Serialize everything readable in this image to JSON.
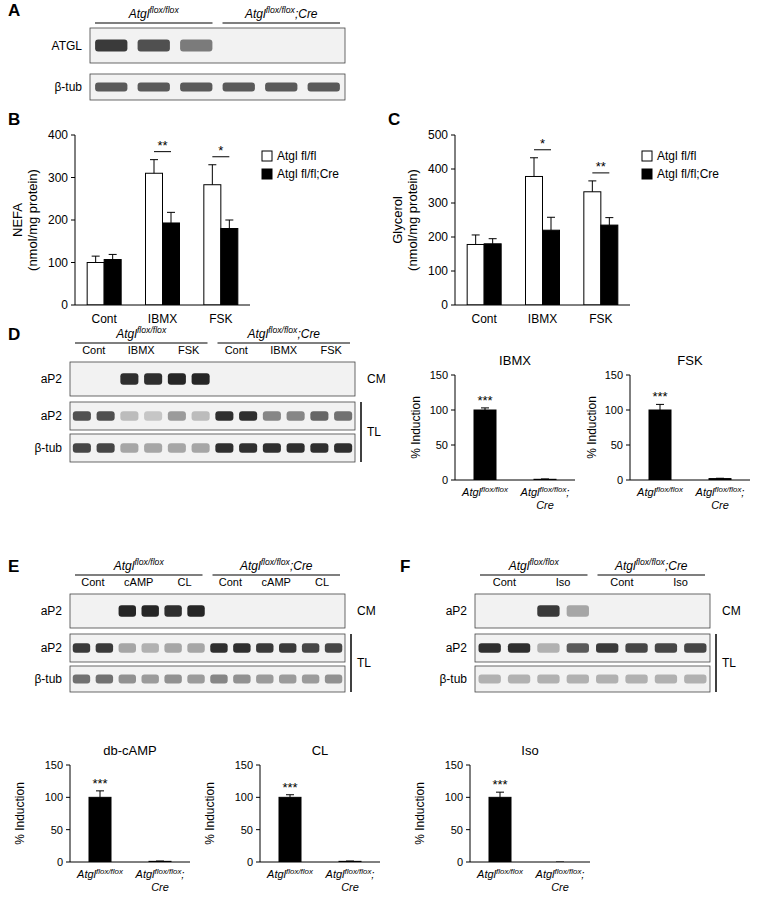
{
  "panels": [
    "A",
    "B",
    "C",
    "D",
    "E",
    "F"
  ],
  "blots": [
    {
      "groups": [
        "Atglflox/flox",
        "Atglflox/flox;Cre"
      ],
      "rows": [
        "ATGL",
        "β-tub"
      ]
    },
    {
      "groups": [
        "Atglflox/flox",
        "Atglflox/flox;Cre"
      ],
      "lanes": [
        "Cont",
        "IBMX",
        "FSK",
        "Cont",
        "IBMX",
        "FSK"
      ],
      "rows": [
        "aP2",
        "aP2",
        "β-tub"
      ],
      "fractions": [
        "CM",
        "TL"
      ]
    },
    {
      "groups": [
        "Atglflox/flox",
        "Atglflox/flox;Cre"
      ],
      "lanes": [
        "Cont",
        "cAMP",
        "CL",
        "Cont",
        "cAMP",
        "CL"
      ],
      "rows": [
        "aP2",
        "aP2",
        "β-tub"
      ],
      "fractions": [
        "CM",
        "TL"
      ]
    },
    {
      "groups": [
        "Atglflox/flox",
        "Atglflox/flox;Cre"
      ],
      "lanes": [
        "Cont",
        "Iso",
        "Cont",
        "Iso"
      ],
      "rows": [
        "aP2",
        "aP2",
        "β-tub"
      ],
      "fractions": [
        "CM",
        "TL"
      ]
    }
  ],
  "chart_data": [
    {
      "type": "bar",
      "y_label": [
        "NEFA",
        "(nmol/mg protein)"
      ],
      "categories": [
        "Cont",
        "IBMX",
        "FSK"
      ],
      "series": [
        {
          "name": "Atgl fl/fl",
          "color": "#ffffff",
          "values": [
            100,
            310,
            283
          ],
          "errors": [
            15,
            32,
            47
          ]
        },
        {
          "name": "Atgl fl/fl;Cre",
          "color": "#000000",
          "values": [
            107,
            193,
            180
          ],
          "errors": [
            12,
            25,
            20
          ]
        }
      ],
      "significance": [
        null,
        "**",
        "*"
      ],
      "ylim": [
        0,
        400
      ],
      "yticks": [
        0,
        100,
        200,
        300,
        400
      ],
      "legend": "right"
    },
    {
      "type": "bar",
      "y_label": [
        "Glycerol",
        "(nmol/mg protein)"
      ],
      "categories": [
        "Cont",
        "IBMX",
        "FSK"
      ],
      "series": [
        {
          "name": "Atgl fl/fl",
          "color": "#ffffff",
          "values": [
            178,
            378,
            333
          ],
          "errors": [
            28,
            55,
            32
          ]
        },
        {
          "name": "Atgl fl/fl;Cre",
          "color": "#000000",
          "values": [
            180,
            220,
            235
          ],
          "errors": [
            15,
            38,
            22
          ]
        }
      ],
      "significance": [
        null,
        "*",
        "**"
      ],
      "ylim": [
        0,
        500
      ],
      "yticks": [
        0,
        100,
        200,
        300,
        400,
        500
      ],
      "legend": "right"
    },
    {
      "type": "bar",
      "title": "IBMX",
      "y_label": "% Induction",
      "categories": [
        "Atglflox/flox",
        "Atglflox/flox;Cre"
      ],
      "values": [
        100,
        1
      ],
      "errors": [
        3,
        0.5
      ],
      "color": "#000000",
      "significance": [
        "***",
        null
      ],
      "ylim": [
        0,
        150
      ],
      "yticks": [
        0,
        50,
        100,
        150
      ]
    },
    {
      "type": "bar",
      "title": "FSK",
      "y_label": "% Induction",
      "categories": [
        "Atglflox/flox",
        "Atglflox/flox;Cre"
      ],
      "values": [
        100,
        2
      ],
      "errors": [
        8,
        0.5
      ],
      "color": "#000000",
      "significance": [
        "***",
        null
      ],
      "ylim": [
        0,
        150
      ],
      "yticks": [
        0,
        50,
        100,
        150
      ]
    },
    {
      "type": "bar",
      "title": "db-cAMP",
      "y_label": "% Induction",
      "categories": [
        "Atglflox/flox",
        "Atglflox/flox;Cre"
      ],
      "values": [
        100,
        1
      ],
      "errors": [
        10,
        0.5
      ],
      "color": "#000000",
      "significance": [
        "***",
        null
      ],
      "ylim": [
        0,
        150
      ],
      "yticks": [
        0,
        50,
        100,
        150
      ]
    },
    {
      "type": "bar",
      "title": "CL",
      "y_label": "% Induction",
      "categories": [
        "Atglflox/flox",
        "Atglflox/flox;Cre"
      ],
      "values": [
        100,
        1
      ],
      "errors": [
        4,
        0.5
      ],
      "color": "#000000",
      "significance": [
        "***",
        null
      ],
      "ylim": [
        0,
        150
      ],
      "yticks": [
        0,
        50,
        100,
        150
      ]
    },
    {
      "type": "bar",
      "title": "Iso",
      "y_label": "% Induction",
      "categories": [
        "Atglflox/flox",
        "Atglflox/flox;Cre"
      ],
      "values": [
        100,
        0
      ],
      "errors": [
        8,
        0
      ],
      "color": "#000000",
      "significance": [
        "***",
        null
      ],
      "ylim": [
        0,
        150
      ],
      "yticks": [
        0,
        50,
        100,
        150
      ]
    }
  ]
}
